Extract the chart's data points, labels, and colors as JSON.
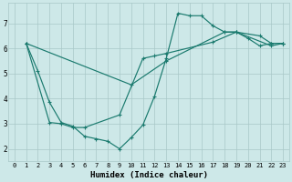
{
  "xlabel": "Humidex (Indice chaleur)",
  "xlim": [
    -0.5,
    23.5
  ],
  "ylim": [
    1.5,
    7.8
  ],
  "xticks": [
    0,
    1,
    2,
    3,
    4,
    5,
    6,
    7,
    8,
    9,
    10,
    11,
    12,
    13,
    14,
    15,
    16,
    17,
    18,
    19,
    20,
    21,
    22,
    23
  ],
  "yticks": [
    2,
    3,
    4,
    5,
    6,
    7
  ],
  "bg_color": "#cde8e8",
  "line_color": "#1a7a6e",
  "grid_color": "#a8c8c8",
  "line1_x": [
    1,
    2,
    3,
    4,
    5,
    6,
    7,
    8,
    9,
    10,
    11,
    12,
    13,
    14,
    15,
    16,
    17,
    18,
    19,
    20,
    21,
    22,
    23
  ],
  "line1_y": [
    6.2,
    5.1,
    3.85,
    3.05,
    2.9,
    2.5,
    2.4,
    2.3,
    2.0,
    2.45,
    2.95,
    4.1,
    5.6,
    7.4,
    7.3,
    7.3,
    6.9,
    6.65,
    6.65,
    6.4,
    6.1,
    6.2,
    6.2
  ],
  "line2_x": [
    1,
    3,
    4,
    5,
    6,
    9,
    11,
    12,
    13,
    17,
    19,
    21,
    22,
    23
  ],
  "line2_y": [
    6.2,
    3.05,
    3.0,
    2.85,
    2.85,
    3.35,
    5.6,
    5.7,
    5.8,
    6.25,
    6.65,
    6.5,
    6.2,
    6.2
  ],
  "line3_x": [
    1,
    10,
    13,
    18,
    19,
    22,
    23
  ],
  "line3_y": [
    6.2,
    4.55,
    5.5,
    6.65,
    6.65,
    6.1,
    6.2
  ]
}
